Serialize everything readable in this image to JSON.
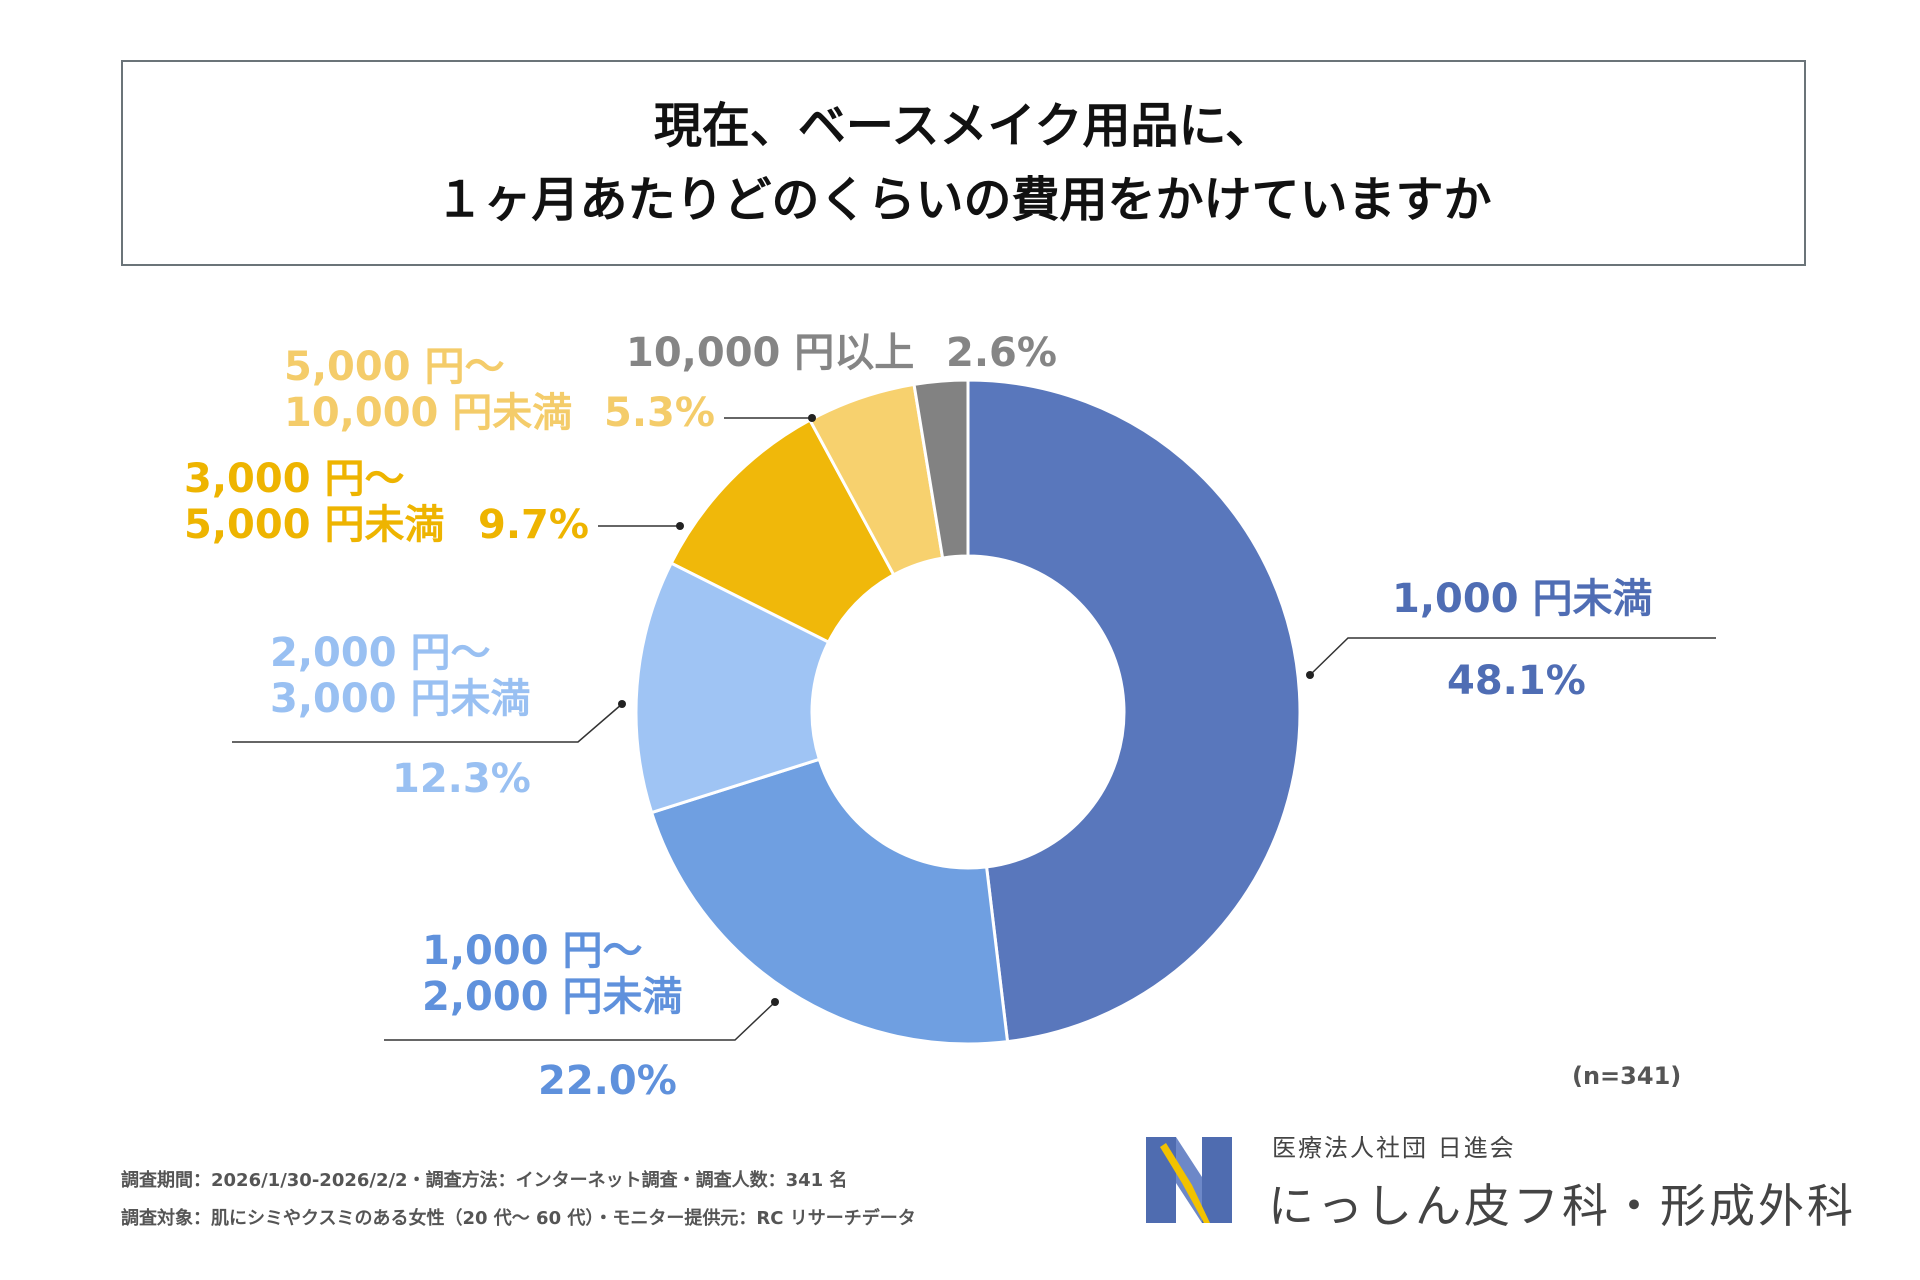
{
  "title": {
    "line1": "現在、ベースメイク用品に、",
    "line2": "１ヶ月あたりどのくらいの費用をかけていますか"
  },
  "chart_data": {
    "type": "donut",
    "title": "現在、ベースメイク用品に、１ヶ月あたりどのくらいの費用をかけていますか",
    "start": "12 o'clock, clockwise",
    "slices": [
      {
        "id": "lt1000",
        "label_lines": [
          "1,000 円未満"
        ],
        "pct_text": "48.1%",
        "value": 48.1,
        "color": "#5977bc"
      },
      {
        "id": "r1000",
        "label_lines": [
          "1,000 円～",
          "2,000 円未満"
        ],
        "pct_text": "22.0%",
        "value": 22.0,
        "color": "#6f9fe1"
      },
      {
        "id": "r2000",
        "label_lines": [
          "2,000 円～",
          "3,000 円未満"
        ],
        "pct_text": "12.3%",
        "value": 12.3,
        "color": "#9fc4f4"
      },
      {
        "id": "r3000",
        "label_lines": [
          "3,000 円～",
          "5,000 円未満"
        ],
        "pct_text": "9.7%",
        "value": 9.7,
        "color": "#f0b80a"
      },
      {
        "id": "r5000",
        "label_lines": [
          "5,000 円～",
          "10,000 円未満"
        ],
        "pct_text": "5.3%",
        "value": 5.3,
        "color": "#f7d16e"
      },
      {
        "id": "ge10000",
        "label_lines": [
          "10,000 円以上"
        ],
        "pct_text": "2.6%",
        "value": 2.6,
        "color": "#828282"
      }
    ]
  },
  "sample_note": "(n=341)",
  "footnotes": {
    "line1": "調査期間：2026/1/30-2026/2/2・調査方法：インターネット調査・調査人数：341 名",
    "line2": "調査対象：肌にシミやクスミのある女性（20 代～ 60 代）・モニター提供元：RC リサーチデータ"
  },
  "logo": {
    "subtitle": "医療法人社団 日進会",
    "name": "にっしん皮フ科・形成外科",
    "colors": {
      "blue": "#4f6cb0",
      "yellow": "#f2c200"
    }
  }
}
